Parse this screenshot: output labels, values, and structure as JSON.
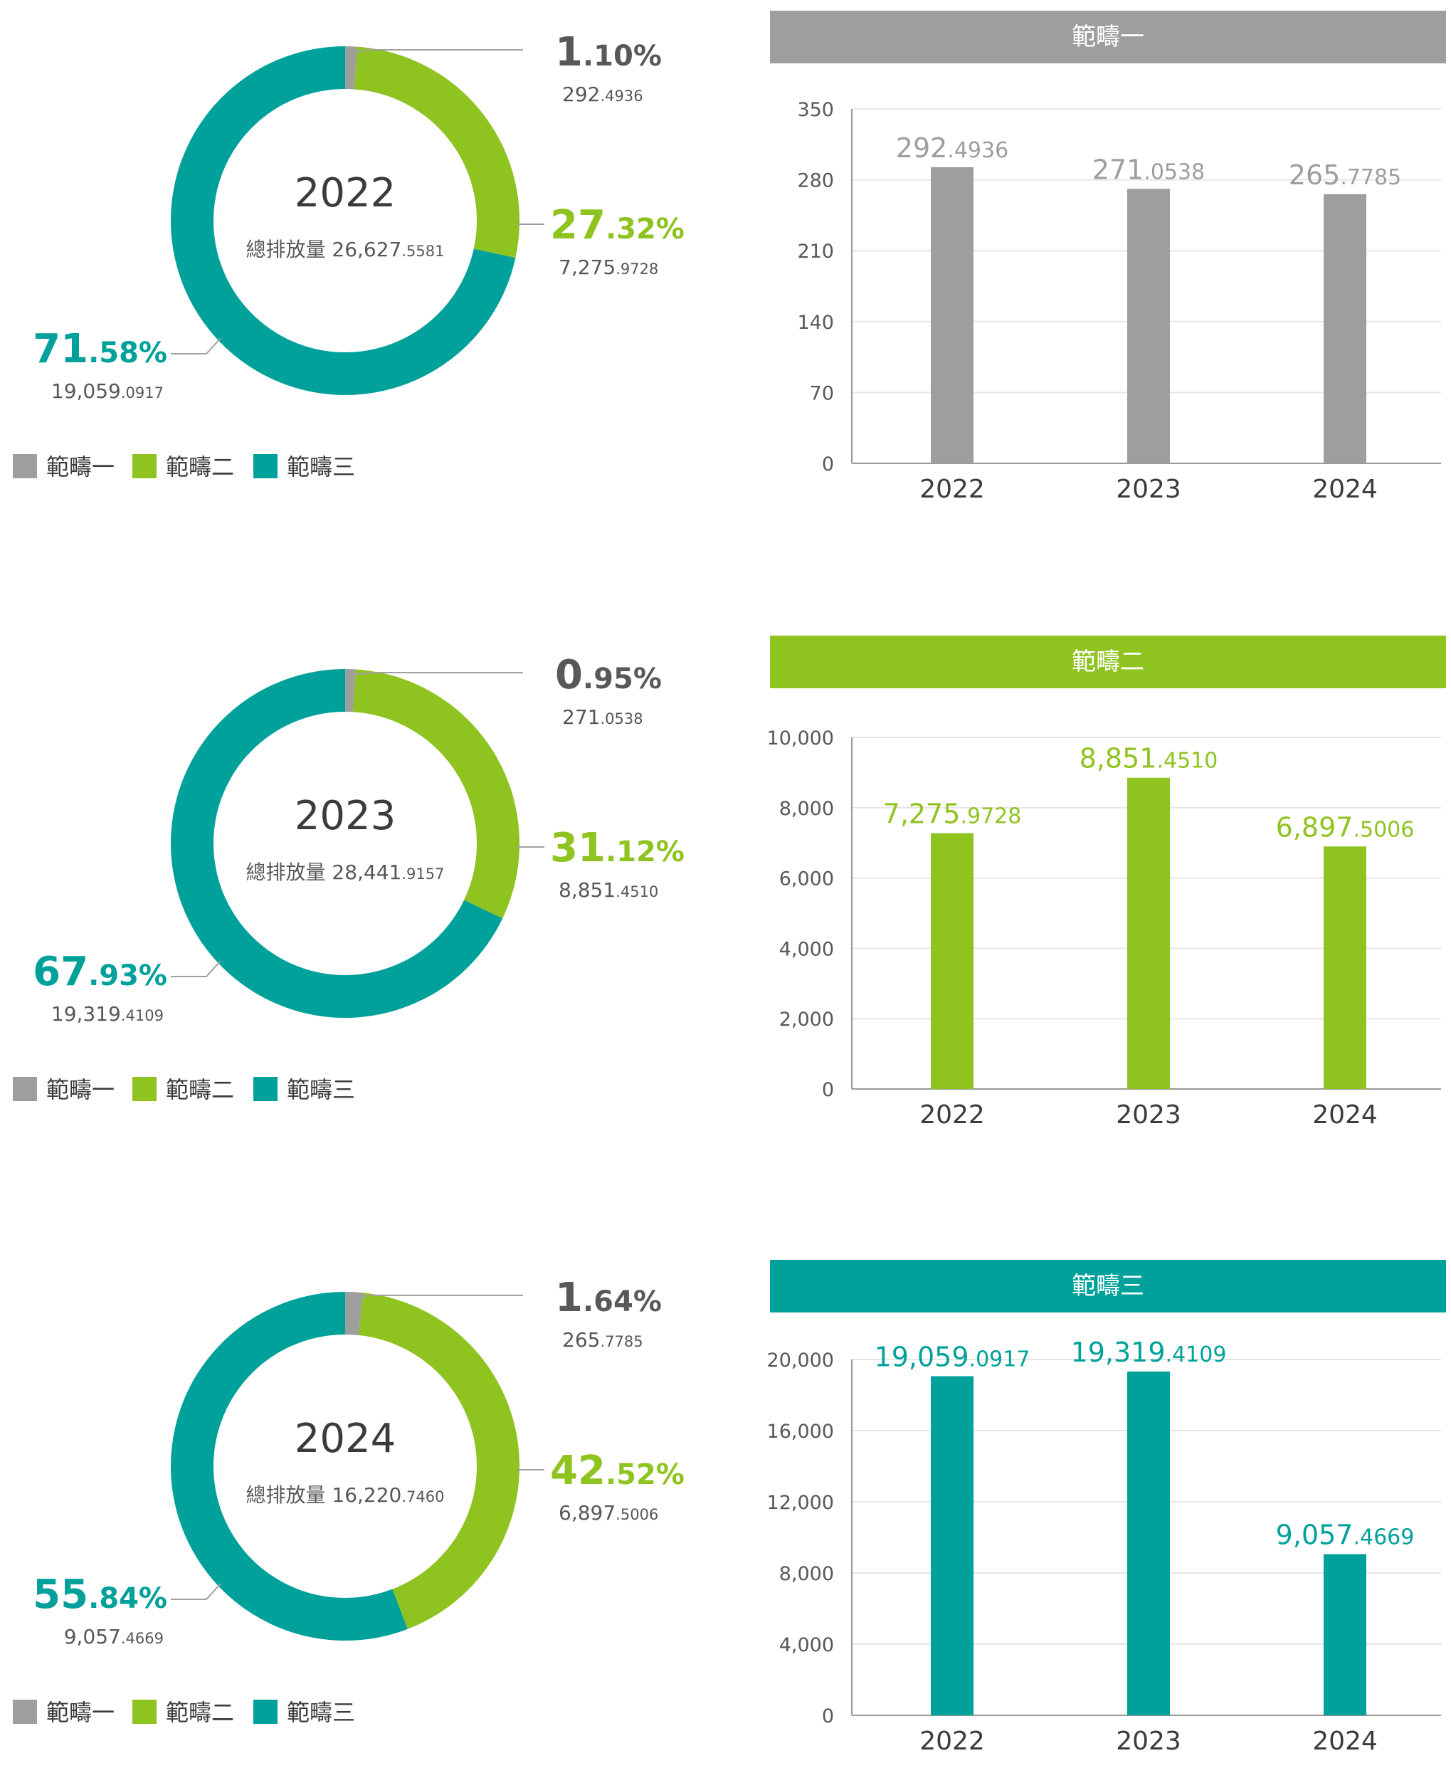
{
  "colors": {
    "scope1": "#9e9e9e",
    "scope2": "#8fc31f",
    "scope3": "#00a19a",
    "text": "#3e3a39",
    "axis": "#999999",
    "grid": "#e6e6e6"
  },
  "total_label": "總排放量",
  "legend": [
    "範疇一",
    "範疇二",
    "範疇三"
  ],
  "chart_data": [
    {
      "type": "pie",
      "year": "2022",
      "total": {
        "int": "26,627",
        "dec": ".5581"
      },
      "slices": [
        {
          "name": "範疇一",
          "pct": 1.1,
          "pct_int": "1",
          "pct_dec": ".10%",
          "val_int": "292",
          "val_dec": ".4936"
        },
        {
          "name": "範疇二",
          "pct": 27.32,
          "pct_int": "27",
          "pct_dec": ".32%",
          "val_int": "7,275",
          "val_dec": ".9728"
        },
        {
          "name": "範疇三",
          "pct": 71.58,
          "pct_int": "71",
          "pct_dec": ".58%",
          "val_int": "19,059",
          "val_dec": ".0917"
        }
      ]
    },
    {
      "type": "pie",
      "year": "2023",
      "total": {
        "int": "28,441",
        "dec": ".9157"
      },
      "slices": [
        {
          "name": "範疇一",
          "pct": 0.95,
          "pct_int": "0",
          "pct_dec": ".95%",
          "val_int": "271",
          "val_dec": ".0538"
        },
        {
          "name": "範疇二",
          "pct": 31.12,
          "pct_int": "31",
          "pct_dec": ".12%",
          "val_int": "8,851",
          "val_dec": ".4510"
        },
        {
          "name": "範疇三",
          "pct": 67.93,
          "pct_int": "67",
          "pct_dec": ".93%",
          "val_int": "19,319",
          "val_dec": ".4109"
        }
      ]
    },
    {
      "type": "pie",
      "year": "2024",
      "total": {
        "int": "16,220",
        "dec": ".7460"
      },
      "slices": [
        {
          "name": "範疇一",
          "pct": 1.64,
          "pct_int": "1",
          "pct_dec": ".64%",
          "val_int": "265",
          "val_dec": ".7785"
        },
        {
          "name": "範疇二",
          "pct": 42.52,
          "pct_int": "42",
          "pct_dec": ".52%",
          "val_int": "6,897",
          "val_dec": ".5006"
        },
        {
          "name": "範疇三",
          "pct": 55.84,
          "pct_int": "55",
          "pct_dec": ".84%",
          "val_int": "9,057",
          "val_dec": ".4669"
        }
      ]
    },
    {
      "type": "bar",
      "title": "範疇一",
      "categories": [
        "2022",
        "2023",
        "2024"
      ],
      "values": [
        292.4936,
        271.0538,
        265.7785
      ],
      "labels": [
        {
          "int": "292",
          "dec": ".4936"
        },
        {
          "int": "271",
          "dec": ".0538"
        },
        {
          "int": "265",
          "dec": ".7785"
        }
      ],
      "ylim": [
        0,
        350
      ],
      "yticks": [
        "0",
        "70",
        "140",
        "210",
        "280",
        "350"
      ]
    },
    {
      "type": "bar",
      "title": "範疇二",
      "categories": [
        "2022",
        "2023",
        "2024"
      ],
      "values": [
        7275.9728,
        8851.451,
        6897.5006
      ],
      "labels": [
        {
          "int": "7,275",
          "dec": ".9728"
        },
        {
          "int": "8,851",
          "dec": ".4510"
        },
        {
          "int": "6,897",
          "dec": ".5006"
        }
      ],
      "ylim": [
        0,
        10000
      ],
      "yticks": [
        "0",
        "2,000",
        "4,000",
        "6,000",
        "8,000",
        "10,000"
      ]
    },
    {
      "type": "bar",
      "title": "範疇三",
      "categories": [
        "2022",
        "2023",
        "2024"
      ],
      "values": [
        19059.0917,
        19319.4109,
        9057.4669
      ],
      "labels": [
        {
          "int": "19,059",
          "dec": ".0917"
        },
        {
          "int": "19,319",
          "dec": ".4109"
        },
        {
          "int": "9,057",
          "dec": ".4669"
        }
      ],
      "ylim": [
        0,
        20000
      ],
      "yticks": [
        "0",
        "4,000",
        "8,000",
        "12,000",
        "16,000",
        "20,000"
      ]
    }
  ]
}
